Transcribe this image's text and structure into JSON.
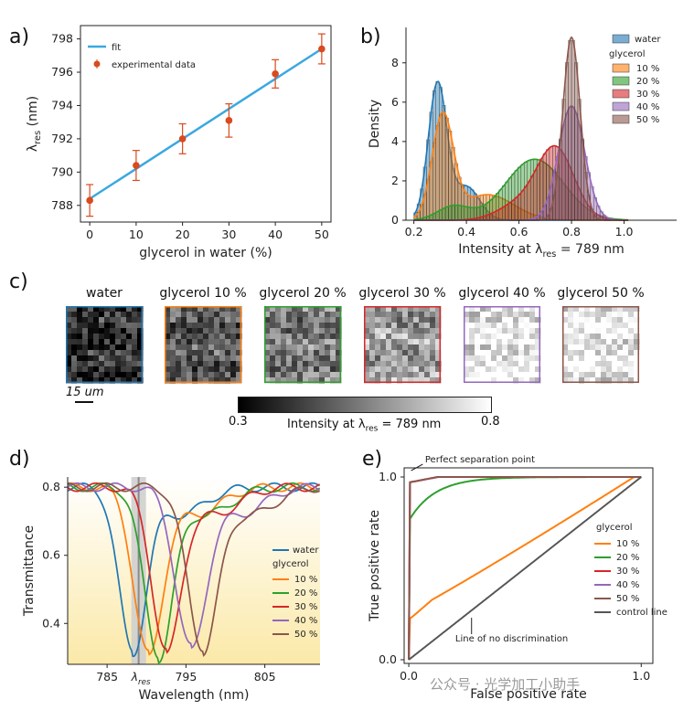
{
  "panel_labels": {
    "a": "a)",
    "b": "b)",
    "c": "c)",
    "d": "d)",
    "e": "e)"
  },
  "colors": {
    "water": "#1f77b4",
    "g10": "#ff7f0e",
    "g20": "#2ca02c",
    "g30": "#d62728",
    "g40": "#9467bd",
    "g50": "#8c564b",
    "fit": "#3aa8e0",
    "exp": "#d94a1e",
    "control": "#555555"
  },
  "chart_data": [
    {
      "id": "a",
      "type": "scatter",
      "xlabel": "glycerol in water (%)",
      "ylabel_main": "λ",
      "ylabel_sub": "res",
      "ylabel_unit": " (nm)",
      "xlim": [
        -2,
        52
      ],
      "ylim": [
        787,
        798.8
      ],
      "xticks": [
        "0",
        "10",
        "20",
        "30",
        "40",
        "50"
      ],
      "yticks": [
        "788",
        "790",
        "792",
        "794",
        "796",
        "798"
      ],
      "x": [
        0,
        10,
        20,
        30,
        40,
        50
      ],
      "y": [
        788.3,
        790.4,
        792.0,
        793.1,
        795.9,
        797.4
      ],
      "err": [
        0.95,
        0.9,
        0.9,
        1.0,
        0.85,
        0.9
      ],
      "fit": {
        "x": [
          0,
          50
        ],
        "y": [
          788.4,
          797.4
        ]
      },
      "legend": [
        "fit",
        "experimental data"
      ]
    },
    {
      "id": "b",
      "type": "histogram",
      "xlabel_main": "Intensity at λ",
      "xlabel_sub": "res",
      "xlabel_tail": " = 789 nm",
      "ylabel": "Density",
      "xlim": [
        0.17,
        1.2
      ],
      "ylim": [
        0,
        9.8
      ],
      "xticks": [
        "0.2",
        "0.4",
        "0.6",
        "0.8",
        "1.0"
      ],
      "yticks": [
        "0",
        "2",
        "4",
        "6",
        "8"
      ],
      "legend_water": "water",
      "legend_title": "glycerol",
      "series": [
        {
          "name": "water",
          "peaks": [
            [
              0.29,
              6.9,
              0.035
            ],
            [
              0.4,
              1.7,
              0.05
            ]
          ]
        },
        {
          "name": "10 %",
          "peaks": [
            [
              0.31,
              5.2,
              0.04
            ],
            [
              0.48,
              1.3,
              0.1
            ]
          ]
        },
        {
          "name": "20 %",
          "peaks": [
            [
              0.66,
              3.1,
              0.11
            ],
            [
              0.35,
              0.7,
              0.06
            ]
          ]
        },
        {
          "name": "30 %",
          "peaks": [
            [
              0.74,
              3.6,
              0.07
            ],
            [
              0.6,
              0.8,
              0.08
            ]
          ]
        },
        {
          "name": "40 %",
          "peaks": [
            [
              0.8,
              5.8,
              0.05
            ]
          ]
        },
        {
          "name": "50 %",
          "peaks": [
            [
              0.8,
              9.3,
              0.033
            ]
          ]
        }
      ]
    },
    {
      "id": "d",
      "type": "line",
      "xlabel": "Wavelength (nm)",
      "ylabel": "Transmittance",
      "xlim": [
        780,
        812
      ],
      "ylim": [
        0.28,
        0.83
      ],
      "xticks": [
        "785",
        "795",
        "805"
      ],
      "xtick_values": [
        785,
        795,
        805
      ],
      "lambda_label": "λ",
      "lambda_sub": "res",
      "lambda_value": 789,
      "yticks": [
        "0.4",
        "0.6",
        "0.8"
      ],
      "ytick_values": [
        0.4,
        0.6,
        0.8
      ],
      "legend_water": "water",
      "legend_title": "glycerol",
      "series": [
        {
          "name": "water",
          "min_x": 788.2,
          "min_y": 0.32,
          "width": 1.7
        },
        {
          "name": "10 %",
          "min_x": 790.2,
          "min_y": 0.31,
          "width": 1.8
        },
        {
          "name": "20 %",
          "min_x": 791.5,
          "min_y": 0.31,
          "width": 1.8
        },
        {
          "name": "30 %",
          "min_x": 792.5,
          "min_y": 0.32,
          "width": 1.8
        },
        {
          "name": "40 %",
          "min_x": 795.6,
          "min_y": 0.33,
          "width": 1.9
        },
        {
          "name": "50 %",
          "min_x": 797.1,
          "min_y": 0.33,
          "width": 1.9
        }
      ]
    },
    {
      "id": "e",
      "type": "line",
      "xlabel": "False positive rate",
      "ylabel": "True positive rate",
      "xlim": [
        -0.02,
        1.05
      ],
      "ylim": [
        -0.02,
        1.05
      ],
      "xticks": [
        "0.0",
        "1.0"
      ],
      "yticks": [
        "0.0",
        "1.0"
      ],
      "legend_title": "glycerol",
      "annotations": {
        "perfect": "Perfect separation point",
        "nodisc": "Line of no discrimination"
      },
      "series": [
        {
          "name": "10 %",
          "kind": "weak"
        },
        {
          "name": "20 %",
          "kind": "good"
        },
        {
          "name": "30 %",
          "kind": "perfect"
        },
        {
          "name": "40 %",
          "kind": "perfect"
        },
        {
          "name": "50 %",
          "kind": "perfect"
        },
        {
          "name": "control line",
          "kind": "diag"
        }
      ]
    }
  ],
  "images": {
    "labels": [
      "water",
      "glycerol 10 %",
      "glycerol 20 %",
      "glycerol 30 %",
      "glycerol 40 %",
      "glycerol 50 %"
    ],
    "brightness": [
      0.18,
      0.35,
      0.48,
      0.62,
      0.93,
      0.95
    ],
    "scale_bar": "15 um",
    "colorbar_min": "0.3",
    "colorbar_max": "0.8",
    "colorbar_label_main": "Intensity at λ",
    "colorbar_label_sub": "res",
    "colorbar_label_tail": " = 789 nm"
  },
  "watermark": "公众号 · 光学加工小助手"
}
